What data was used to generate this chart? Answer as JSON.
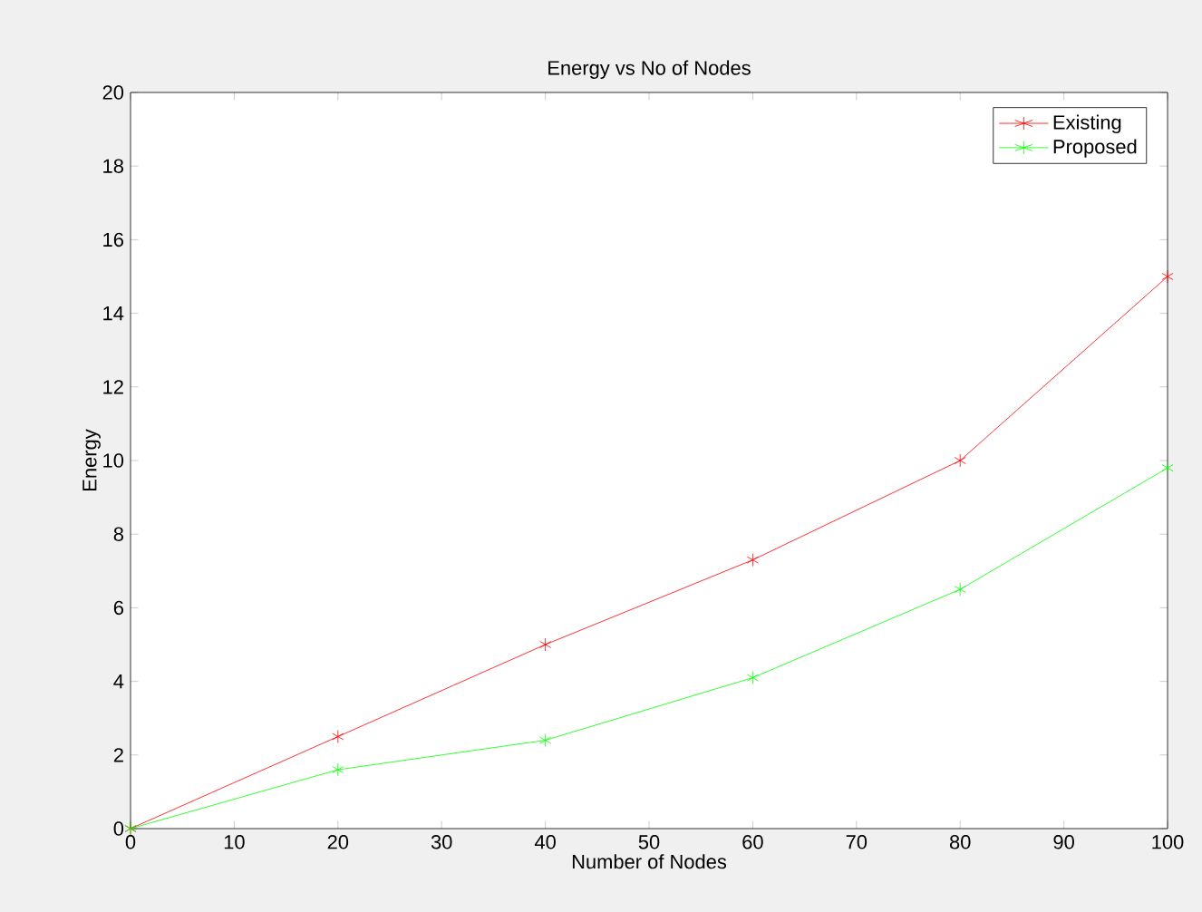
{
  "chart_data": {
    "type": "line",
    "title": "Energy vs No of Nodes",
    "xlabel": "Number of Nodes",
    "ylabel": "Energy",
    "x": [
      0,
      20,
      40,
      60,
      80,
      100
    ],
    "series": [
      {
        "name": "Existing",
        "color": "#ff0000",
        "values": [
          0,
          2.5,
          5,
          7.3,
          10,
          15
        ]
      },
      {
        "name": "Proposed",
        "color": "#00ff00",
        "values": [
          0,
          1.6,
          2.4,
          4.1,
          6.5,
          9.8
        ]
      }
    ],
    "xlim": [
      0,
      100
    ],
    "xticks": [
      0,
      10,
      20,
      30,
      40,
      50,
      60,
      70,
      80,
      90,
      100
    ],
    "ylim": [
      0,
      20
    ],
    "yticks": [
      0,
      2,
      4,
      6,
      8,
      10,
      12,
      14,
      16,
      18,
      20
    ],
    "legend": "top right",
    "marker": "cross",
    "line_style": "solid",
    "grid": false
  }
}
